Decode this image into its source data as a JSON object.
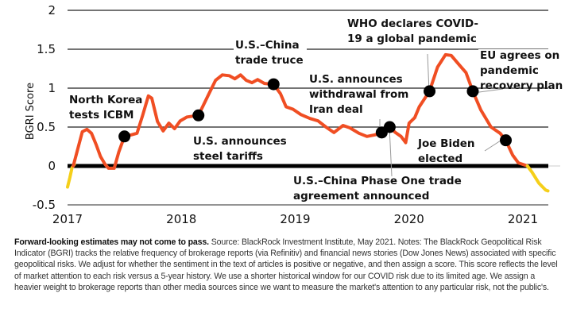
{
  "chart_data": {
    "type": "line",
    "title": "",
    "xlabel": "",
    "ylabel": "BGRI Score",
    "xlim": [
      2017,
      2021.3
    ],
    "ylim": [
      -0.5,
      2
    ],
    "x_ticks": [
      "2017",
      "2018",
      "2019",
      "2020",
      "2021"
    ],
    "x_tick_values": [
      2017,
      2018,
      2019,
      2020,
      2021
    ],
    "y_ticks": [
      "-0.5",
      "0",
      "0.5",
      "1",
      "1.5",
      "2"
    ],
    "y_tick_values": [
      -0.5,
      0,
      0.5,
      1,
      1.5,
      2
    ],
    "grid": "horizontal",
    "colors": {
      "main_line": "#f04e23",
      "partial_line": "#f5cf1a",
      "zero_line": "#000000",
      "grid": "#222222",
      "marker": "#000000",
      "leader": "#999999"
    },
    "series": [
      {
        "name": "BGRI (early, yellow)",
        "color": "#f5cf1a",
        "points": [
          [
            2017.0,
            -0.27
          ],
          [
            2017.02,
            -0.15
          ],
          [
            2017.04,
            -0.02
          ],
          [
            2017.06,
            0.02
          ]
        ]
      },
      {
        "name": "BGRI",
        "color": "#f04e23",
        "points": [
          [
            2017.05,
            0.0
          ],
          [
            2017.09,
            0.22
          ],
          [
            2017.13,
            0.44
          ],
          [
            2017.17,
            0.47
          ],
          [
            2017.21,
            0.42
          ],
          [
            2017.25,
            0.28
          ],
          [
            2017.29,
            0.12
          ],
          [
            2017.33,
            0.02
          ],
          [
            2017.36,
            -0.03
          ],
          [
            2017.41,
            -0.03
          ],
          [
            2017.45,
            0.18
          ],
          [
            2017.5,
            0.38
          ],
          [
            2017.56,
            0.4
          ],
          [
            2017.61,
            0.42
          ],
          [
            2017.66,
            0.65
          ],
          [
            2017.71,
            0.9
          ],
          [
            2017.74,
            0.87
          ],
          [
            2017.79,
            0.57
          ],
          [
            2017.84,
            0.45
          ],
          [
            2017.89,
            0.55
          ],
          [
            2017.94,
            0.48
          ],
          [
            2017.99,
            0.58
          ],
          [
            2018.05,
            0.63
          ],
          [
            2018.15,
            0.65
          ],
          [
            2018.24,
            0.92
          ],
          [
            2018.3,
            1.1
          ],
          [
            2018.36,
            1.17
          ],
          [
            2018.42,
            1.16
          ],
          [
            2018.47,
            1.12
          ],
          [
            2018.52,
            1.17
          ],
          [
            2018.57,
            1.1
          ],
          [
            2018.62,
            1.07
          ],
          [
            2018.67,
            1.11
          ],
          [
            2018.73,
            1.06
          ],
          [
            2018.81,
            1.05
          ],
          [
            2018.87,
            0.93
          ],
          [
            2018.92,
            0.76
          ],
          [
            2018.98,
            0.73
          ],
          [
            2019.05,
            0.66
          ],
          [
            2019.13,
            0.61
          ],
          [
            2019.2,
            0.58
          ],
          [
            2019.27,
            0.5
          ],
          [
            2019.34,
            0.43
          ],
          [
            2019.42,
            0.52
          ],
          [
            2019.48,
            0.49
          ],
          [
            2019.56,
            0.42
          ],
          [
            2019.63,
            0.38
          ],
          [
            2019.7,
            0.4
          ],
          [
            2019.76,
            0.43
          ],
          [
            2019.83,
            0.5
          ],
          [
            2019.88,
            0.43
          ],
          [
            2019.93,
            0.38
          ],
          [
            2019.97,
            0.3
          ],
          [
            2020.0,
            0.55
          ],
          [
            2020.05,
            0.62
          ],
          [
            2020.09,
            0.76
          ],
          [
            2020.18,
            0.96
          ],
          [
            2020.25,
            1.27
          ],
          [
            2020.32,
            1.43
          ],
          [
            2020.37,
            1.42
          ],
          [
            2020.44,
            1.3
          ],
          [
            2020.5,
            1.2
          ],
          [
            2020.56,
            0.96
          ],
          [
            2020.63,
            0.72
          ],
          [
            2020.72,
            0.5
          ],
          [
            2020.8,
            0.42
          ],
          [
            2020.85,
            0.33
          ],
          [
            2020.91,
            0.14
          ],
          [
            2020.96,
            0.04
          ],
          [
            2021.0,
            0.02
          ],
          [
            2021.04,
            0.0
          ]
        ]
      },
      {
        "name": "BGRI (recent, yellow)",
        "color": "#f5cf1a",
        "points": [
          [
            2021.04,
            0.0
          ],
          [
            2021.08,
            -0.08
          ],
          [
            2021.14,
            -0.22
          ],
          [
            2021.2,
            -0.31
          ],
          [
            2021.22,
            -0.32
          ]
        ]
      }
    ],
    "markers": [
      {
        "x": 2017.5,
        "y": 0.38
      },
      {
        "x": 2018.15,
        "y": 0.65
      },
      {
        "x": 2018.81,
        "y": 1.05
      },
      {
        "x": 2019.76,
        "y": 0.43
      },
      {
        "x": 2019.83,
        "y": 0.5
      },
      {
        "x": 2020.18,
        "y": 0.96
      },
      {
        "x": 2020.56,
        "y": 0.96
      },
      {
        "x": 2020.85,
        "y": 0.33
      }
    ],
    "annotations": [
      {
        "lines": [
          "North Korea",
          "tests ICBM"
        ],
        "marker_index": 0
      },
      {
        "lines": [
          "U.S. announces",
          "steel tariffs"
        ],
        "marker_index": 1
      },
      {
        "lines": [
          "U.S.–China",
          "trade truce"
        ],
        "marker_index": 2
      },
      {
        "lines": [
          "U.S. announces",
          "withdrawal from",
          "Iran deal"
        ],
        "marker_index": 3
      },
      {
        "lines": [
          "U.S.–China Phase One trade",
          "agreement announced"
        ],
        "marker_index": 4
      },
      {
        "lines": [
          "WHO declares COVID-",
          "19 a global pandemic"
        ],
        "marker_index": 5
      },
      {
        "lines": [
          "EU agrees on",
          "pandemic",
          "recovery plan"
        ],
        "marker_index": 6
      },
      {
        "lines": [
          "Joe Biden",
          "elected"
        ],
        "marker_index": 7
      }
    ]
  },
  "footnote": {
    "bold": "Forward-looking estimates may not come to pass.",
    "text": " Source: BlackRock Investment Institute, May 2021. Notes: The BlackRock Geopolitical Risk Indicator (BGRI) tracks the relative frequency of brokerage reports (via Refinitiv) and financial news stories (Dow Jones News) associated with specific geopolitical risks. We adjust for whether the sentiment in the text of articles is positive or negative, and then assign a score. This score reflects the level of market attention to each risk versus a 5-year history. We use a shorter historical window for our COVID risk due to its limited age. We assign a heavier weight to brokerage reports than other media sources since we want to measure the market's attention to any particular risk, not the public's."
  }
}
